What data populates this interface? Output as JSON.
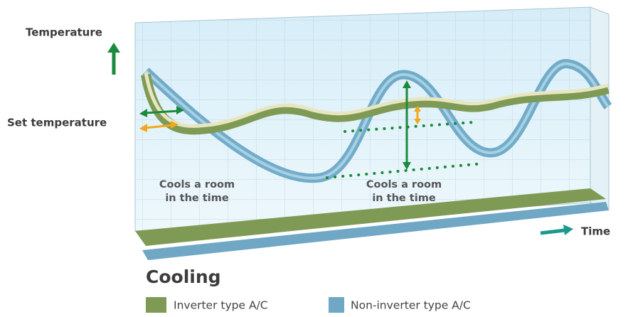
{
  "labels": {
    "y_axis": "Temperature",
    "set_point": "Set temperature",
    "x_axis": "Time"
  },
  "annotations": [
    [
      "Cools a room",
      "in the time"
    ],
    [
      "Cools a room",
      "in the time"
    ]
  ],
  "title": "Cooling",
  "legend": [
    "Inverter type A/C",
    "Non-inverter type A/C"
  ]
}
